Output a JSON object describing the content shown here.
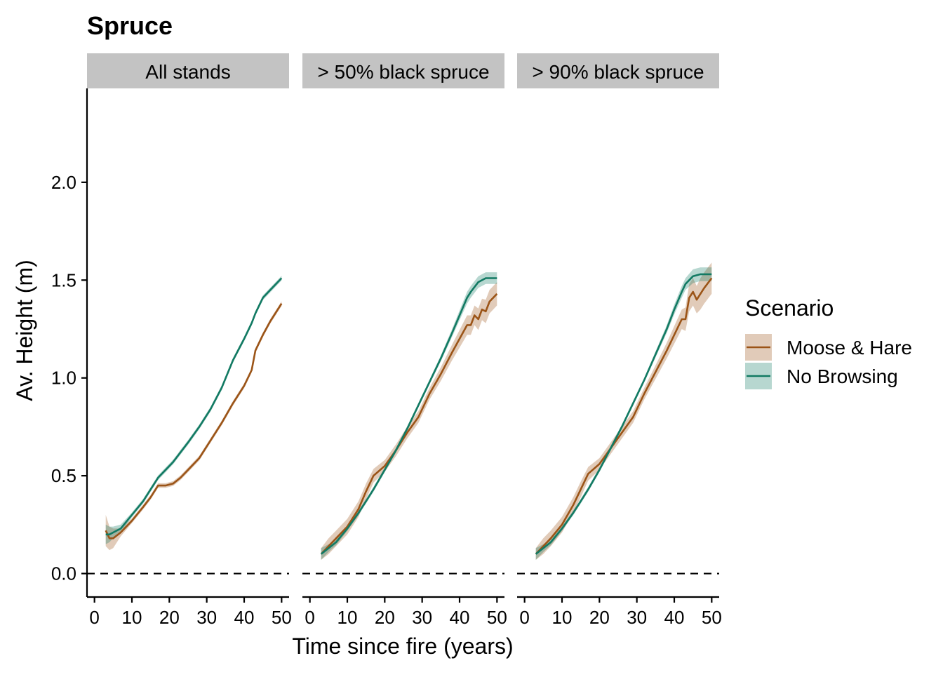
{
  "chart_data": {
    "type": "line",
    "title": "Spruce",
    "xlabel": "Time since fire (years)",
    "ylabel": "Av. Height (m)",
    "xlim": [
      -2,
      52
    ],
    "ylim": [
      -0.12,
      2.48
    ],
    "x_ticks": [
      0,
      10,
      20,
      30,
      40,
      50
    ],
    "x_tick_labels": [
      "0",
      "10",
      "20",
      "30",
      "40",
      "50"
    ],
    "y_ticks": [
      0,
      0.5,
      1,
      1.5,
      2
    ],
    "y_tick_labels": [
      "0.0",
      "0.5",
      "1.0",
      "1.5",
      "2.0"
    ],
    "reference_line": {
      "y": 0,
      "style": "dashed"
    },
    "grid": false,
    "legend": {
      "title": "Scenario",
      "position": "right",
      "entries": [
        "Moose & Hare",
        "No Browsing"
      ]
    },
    "colors": {
      "Moose & Hare": "#9b5417",
      "No Browsing": "#127a63",
      "strip_bg": "#c3c3c3"
    },
    "panels": [
      {
        "label": "All stands",
        "series": [
          {
            "name": "Moose & Hare",
            "x": [
              3,
              4,
              5,
              7,
              10,
              13,
              15,
              17,
              19,
              21,
              23,
              25,
              28,
              31,
              34,
              37,
              40,
              42,
              43,
              45,
              47,
              50
            ],
            "y": [
              0.22,
              0.18,
              0.18,
              0.21,
              0.27,
              0.34,
              0.39,
              0.45,
              0.45,
              0.46,
              0.49,
              0.53,
              0.59,
              0.68,
              0.77,
              0.87,
              0.96,
              1.04,
              1.14,
              1.22,
              1.29,
              1.38
            ],
            "ci": [
              0.08,
              0.06,
              0.05,
              0.02,
              0.012,
              0.012,
              0.012,
              0.012,
              0.012,
              0.012,
              0.012,
              0.012,
              0.012,
              0.012,
              0.012,
              0.012,
              0.012,
              0.012,
              0.012,
              0.012,
              0.012,
              0.012
            ]
          },
          {
            "name": "No Browsing",
            "x": [
              3,
              4,
              5,
              7,
              10,
              13,
              15,
              17,
              19,
              21,
              23,
              25,
              28,
              31,
              34,
              37,
              40,
              42,
              43,
              45,
              47,
              50
            ],
            "y": [
              0.2,
              0.2,
              0.21,
              0.23,
              0.3,
              0.37,
              0.43,
              0.49,
              0.53,
              0.57,
              0.62,
              0.67,
              0.75,
              0.84,
              0.95,
              1.09,
              1.2,
              1.28,
              1.33,
              1.41,
              1.45,
              1.51
            ],
            "ci": [
              0.05,
              0.04,
              0.03,
              0.02,
              0.012,
              0.012,
              0.012,
              0.012,
              0.012,
              0.012,
              0.012,
              0.012,
              0.012,
              0.012,
              0.012,
              0.012,
              0.012,
              0.012,
              0.012,
              0.012,
              0.012,
              0.012
            ]
          }
        ]
      },
      {
        "label": "> 50% black spruce",
        "series": [
          {
            "name": "Moose & Hare",
            "x": [
              3,
              5,
              7,
              10,
              13,
              15,
              17,
              20,
              23,
              26,
              29,
              32,
              35,
              38,
              40,
              42,
              43,
              44,
              45,
              46,
              47,
              48,
              50
            ],
            "y": [
              0.1,
              0.14,
              0.18,
              0.24,
              0.33,
              0.42,
              0.5,
              0.55,
              0.63,
              0.72,
              0.8,
              0.92,
              1.02,
              1.13,
              1.2,
              1.27,
              1.27,
              1.32,
              1.3,
              1.35,
              1.34,
              1.39,
              1.43
            ],
            "ci": [
              0.03,
              0.04,
              0.04,
              0.04,
              0.04,
              0.04,
              0.035,
              0.03,
              0.03,
              0.03,
              0.03,
              0.03,
              0.035,
              0.04,
              0.045,
              0.05,
              0.05,
              0.05,
              0.055,
              0.055,
              0.06,
              0.06,
              0.06
            ]
          },
          {
            "name": "No Browsing",
            "x": [
              3,
              5,
              7,
              10,
              13,
              15,
              17,
              20,
              23,
              26,
              29,
              32,
              35,
              38,
              40,
              42,
              43,
              45,
              47,
              50
            ],
            "y": [
              0.1,
              0.13,
              0.16,
              0.23,
              0.31,
              0.37,
              0.43,
              0.53,
              0.63,
              0.74,
              0.86,
              0.98,
              1.1,
              1.23,
              1.32,
              1.41,
              1.44,
              1.49,
              1.51,
              1.51
            ],
            "ci": [
              0.03,
              0.02,
              0.015,
              0.012,
              0.012,
              0.012,
              0.012,
              0.012,
              0.012,
              0.012,
              0.012,
              0.012,
              0.015,
              0.02,
              0.025,
              0.03,
              0.03,
              0.03,
              0.03,
              0.03
            ]
          }
        ]
      },
      {
        "label": "> 90% black spruce",
        "series": [
          {
            "name": "Moose & Hare",
            "x": [
              3,
              5,
              7,
              10,
              13,
              15,
              17,
              20,
              23,
              26,
              29,
              32,
              35,
              38,
              40,
              42,
              43,
              44,
              45,
              46,
              47,
              48,
              50
            ],
            "y": [
              0.1,
              0.14,
              0.18,
              0.25,
              0.35,
              0.43,
              0.51,
              0.56,
              0.64,
              0.72,
              0.8,
              0.92,
              1.03,
              1.14,
              1.22,
              1.3,
              1.3,
              1.41,
              1.44,
              1.4,
              1.43,
              1.46,
              1.51
            ],
            "ci": [
              0.03,
              0.04,
              0.04,
              0.04,
              0.04,
              0.04,
              0.035,
              0.03,
              0.03,
              0.03,
              0.03,
              0.03,
              0.035,
              0.04,
              0.045,
              0.05,
              0.06,
              0.07,
              0.07,
              0.07,
              0.08,
              0.08,
              0.08
            ]
          },
          {
            "name": "No Browsing",
            "x": [
              3,
              5,
              7,
              10,
              13,
              15,
              17,
              20,
              23,
              26,
              29,
              32,
              35,
              38,
              40,
              42,
              43,
              45,
              47,
              50
            ],
            "y": [
              0.1,
              0.13,
              0.16,
              0.23,
              0.31,
              0.37,
              0.43,
              0.53,
              0.64,
              0.75,
              0.87,
              0.99,
              1.12,
              1.25,
              1.35,
              1.44,
              1.48,
              1.52,
              1.53,
              1.53
            ],
            "ci": [
              0.03,
              0.02,
              0.015,
              0.012,
              0.012,
              0.012,
              0.012,
              0.012,
              0.012,
              0.012,
              0.012,
              0.012,
              0.015,
              0.02,
              0.025,
              0.03,
              0.03,
              0.035,
              0.035,
              0.035
            ]
          }
        ]
      }
    ]
  }
}
